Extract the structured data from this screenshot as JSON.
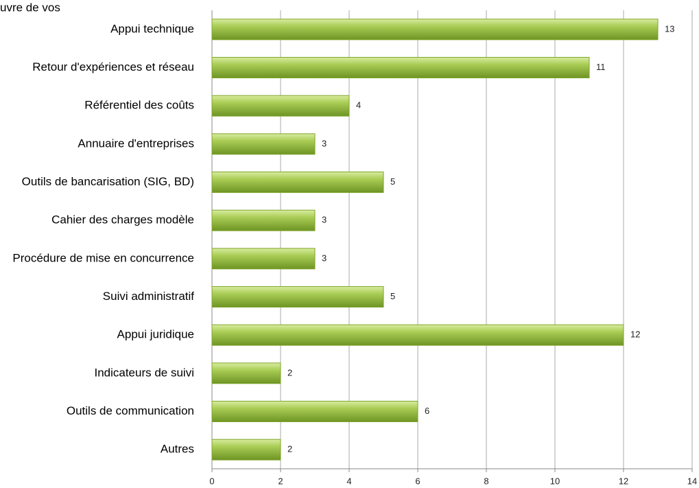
{
  "chart_data": {
    "type": "bar",
    "orientation": "horizontal",
    "title": "uvre de vos",
    "categories": [
      "Appui technique",
      "Retour d'expériences et réseau",
      "Référentiel des coûts",
      "Annuaire d'entreprises",
      "Outils de bancarisation (SIG, BD)",
      "Cahier des charges modèle",
      "Procédure de mise en concurrence",
      "Suivi administratif",
      "Appui juridique",
      "Indicateurs de suivi",
      "Outils de communication",
      "Autres"
    ],
    "values": [
      13,
      11,
      4,
      3,
      5,
      3,
      3,
      5,
      12,
      2,
      6,
      2
    ],
    "color": "#7fa52b",
    "xlim": [
      0,
      14
    ],
    "xticks": [
      0,
      2,
      4,
      6,
      8,
      10,
      12,
      14
    ],
    "grid": true
  }
}
